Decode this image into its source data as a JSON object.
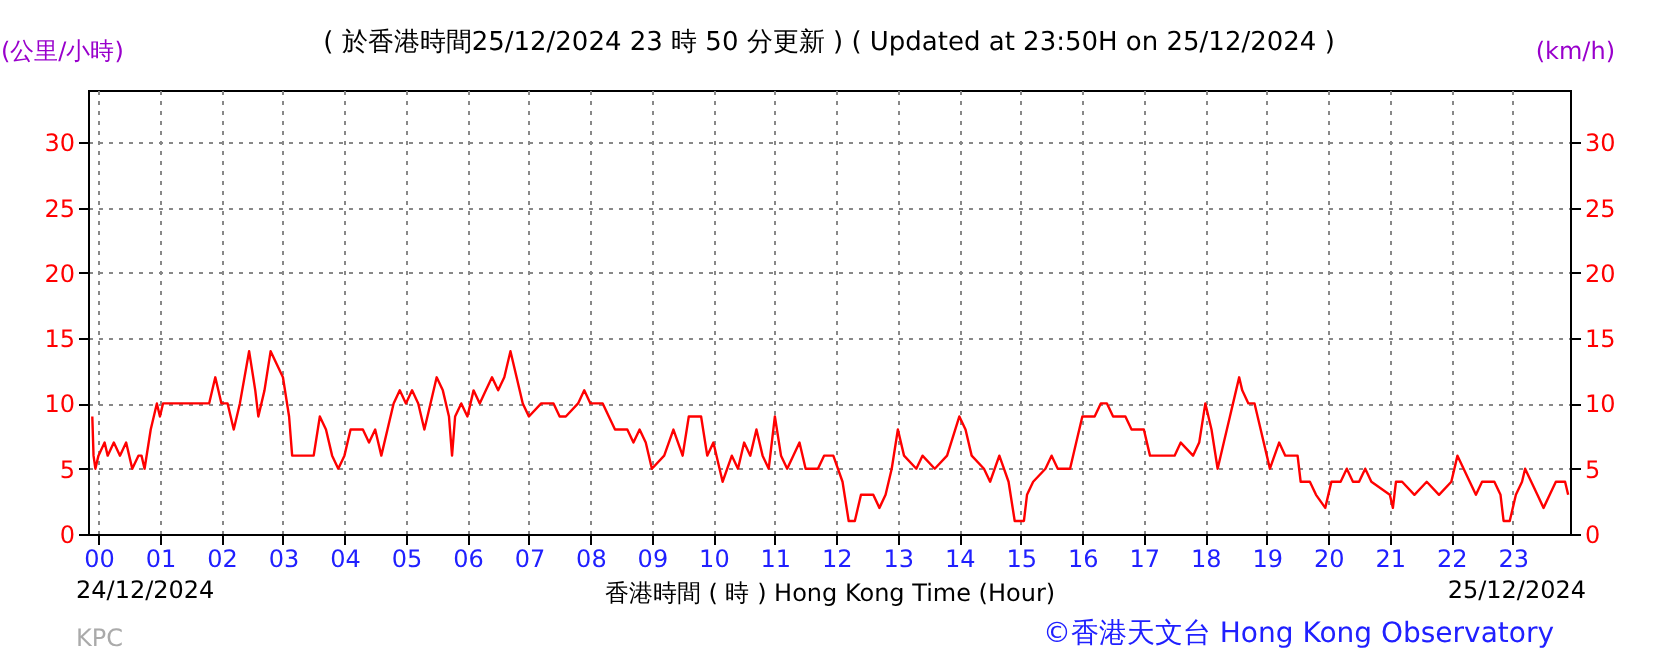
{
  "chart_data": {
    "type": "line",
    "title": "( 於香港時間25/12/2024 23 時 50 分更新 ) ( Updated at 23:50H on 25/12/2024 )",
    "xlabel": "香港時間 ( 時 ) Hong Kong Time (Hour)",
    "ylabel": "(公里/小時)",
    "y2label": "(km/h)",
    "annotations": [
      "24/12/2024",
      "25/12/2024",
      "KPC",
      "©香港天文台 Hong Kong Observatory"
    ],
    "xlim": [
      -0.17,
      23.93
    ],
    "xticks": [
      {
        "value": 0,
        "label": "00"
      },
      {
        "value": 1,
        "label": "01"
      },
      {
        "value": 2,
        "label": "02"
      },
      {
        "value": 3,
        "label": "03"
      },
      {
        "value": 4,
        "label": "04"
      },
      {
        "value": 5,
        "label": "05"
      },
      {
        "value": 6,
        "label": "06"
      },
      {
        "value": 7,
        "label": "07"
      },
      {
        "value": 8,
        "label": "08"
      },
      {
        "value": 9,
        "label": "09"
      },
      {
        "value": 10,
        "label": "10"
      },
      {
        "value": 11,
        "label": "11"
      },
      {
        "value": 12,
        "label": "12"
      },
      {
        "value": 13,
        "label": "13"
      },
      {
        "value": 14,
        "label": "14"
      },
      {
        "value": 15,
        "label": "15"
      },
      {
        "value": 16,
        "label": "16"
      },
      {
        "value": 17,
        "label": "17"
      },
      {
        "value": 18,
        "label": "18"
      },
      {
        "value": 19,
        "label": "19"
      },
      {
        "value": 20,
        "label": "20"
      },
      {
        "value": 21,
        "label": "21"
      },
      {
        "value": 22,
        "label": "22"
      },
      {
        "value": 23,
        "label": "23"
      }
    ],
    "ylim": [
      0,
      34
    ],
    "yticks": [
      0,
      5,
      10,
      15,
      20,
      25,
      30
    ],
    "y2lim": [
      0,
      34
    ],
    "y2ticks": [
      0,
      5,
      10,
      15,
      20,
      25,
      30
    ],
    "grid": true,
    "series": [
      {
        "color": "#ff0000",
        "x": [
          -0.1,
          -0.08,
          -0.05,
          0,
          0.1,
          0.15,
          0.25,
          0.35,
          0.45,
          0.55,
          0.65,
          0.7,
          0.75,
          0.85,
          0.95,
          1.0,
          1.05,
          1.2,
          1.5,
          1.8,
          1.9,
          2.0,
          2.1,
          2.2,
          2.3,
          2.45,
          2.55,
          2.6,
          2.7,
          2.8,
          2.9,
          3.0,
          3.1,
          3.15,
          3.3,
          3.5,
          3.6,
          3.7,
          3.8,
          3.9,
          4.0,
          4.1,
          4.3,
          4.4,
          4.5,
          4.6,
          4.7,
          4.8,
          4.9,
          5.0,
          5.1,
          5.2,
          5.3,
          5.4,
          5.5,
          5.6,
          5.7,
          5.75,
          5.8,
          5.9,
          6.0,
          6.1,
          6.2,
          6.3,
          6.4,
          6.5,
          6.6,
          6.7,
          6.8,
          6.9,
          7.0,
          7.2,
          7.4,
          7.5,
          7.6,
          7.8,
          7.9,
          8.0,
          8.2,
          8.4,
          8.6,
          8.7,
          8.8,
          8.9,
          9.0,
          9.2,
          9.35,
          9.5,
          9.6,
          9.8,
          9.9,
          10.0,
          10.15,
          10.3,
          10.4,
          10.5,
          10.6,
          10.7,
          10.8,
          10.9,
          11.0,
          11.1,
          11.2,
          11.4,
          11.5,
          11.7,
          11.8,
          11.95,
          12.1,
          12.2,
          12.3,
          12.4,
          12.6,
          12.7,
          12.8,
          12.9,
          13.0,
          13.1,
          13.3,
          13.4,
          13.6,
          13.8,
          14.0,
          14.1,
          14.2,
          14.4,
          14.5,
          14.65,
          14.8,
          14.9,
          15.05,
          15.1,
          15.2,
          15.4,
          15.5,
          15.6,
          15.8,
          15.9,
          16.0,
          16.2,
          16.3,
          16.4,
          16.5,
          16.7,
          16.8,
          17.0,
          17.1,
          17.3,
          17.5,
          17.6,
          17.8,
          17.9,
          18.0,
          18.1,
          18.2,
          18.3,
          18.4,
          18.5,
          18.55,
          18.6,
          18.7,
          18.8,
          18.9,
          19.0,
          19.05,
          19.2,
          19.3,
          19.5,
          19.55,
          19.7,
          19.8,
          19.95,
          20.05,
          20.2,
          20.3,
          20.4,
          20.5,
          20.6,
          20.7,
          21.0,
          21.05,
          21.1,
          21.2,
          21.4,
          21.6,
          21.8,
          22.0,
          22.1,
          22.2,
          22.3,
          22.4,
          22.5,
          22.7,
          22.8,
          22.85,
          22.95,
          23.05,
          23.15,
          23.2,
          23.3,
          23.4,
          23.5,
          23.6,
          23.7,
          23.85,
          23.9
        ],
        "values": [
          9,
          6,
          5,
          6,
          7,
          6,
          7,
          6,
          7,
          5,
          6,
          6,
          5,
          8,
          10,
          9,
          10,
          10,
          10,
          10,
          12,
          10,
          10,
          8,
          10,
          14,
          11,
          9,
          11,
          14,
          13,
          12,
          9,
          6,
          6,
          6,
          9,
          8,
          6,
          5,
          6,
          8,
          8,
          7,
          8,
          6,
          8,
          10,
          11,
          10,
          11,
          10,
          8,
          10,
          12,
          11,
          9,
          6,
          9,
          10,
          9,
          11,
          10,
          11,
          12,
          11,
          12,
          14,
          12,
          10,
          9,
          10,
          10,
          9,
          9,
          10,
          11,
          10,
          10,
          8,
          8,
          7,
          8,
          7,
          5,
          6,
          8,
          6,
          9,
          9,
          6,
          7,
          4,
          6,
          5,
          7,
          6,
          8,
          6,
          5,
          9,
          6,
          5,
          7,
          5,
          5,
          6,
          6,
          4,
          1,
          1,
          3,
          3,
          2,
          3,
          5,
          8,
          6,
          5,
          6,
          5,
          6,
          9,
          8,
          6,
          5,
          4,
          6,
          4,
          1,
          1,
          3,
          4,
          5,
          6,
          5,
          5,
          7,
          9,
          9,
          10,
          10,
          9,
          9,
          8,
          8,
          6,
          6,
          6,
          7,
          6,
          7,
          10,
          8,
          5,
          7,
          9,
          11,
          12,
          11,
          10,
          10,
          8,
          6,
          5,
          7,
          6,
          6,
          4,
          4,
          3,
          2,
          4,
          4,
          5,
          4,
          4,
          5,
          4,
          3,
          2,
          4,
          4,
          3,
          4,
          3,
          4,
          6,
          5,
          4,
          3,
          4,
          4,
          3,
          1,
          1,
          3,
          4,
          5,
          4,
          3,
          2,
          3,
          4,
          4,
          3
        ]
      }
    ]
  }
}
